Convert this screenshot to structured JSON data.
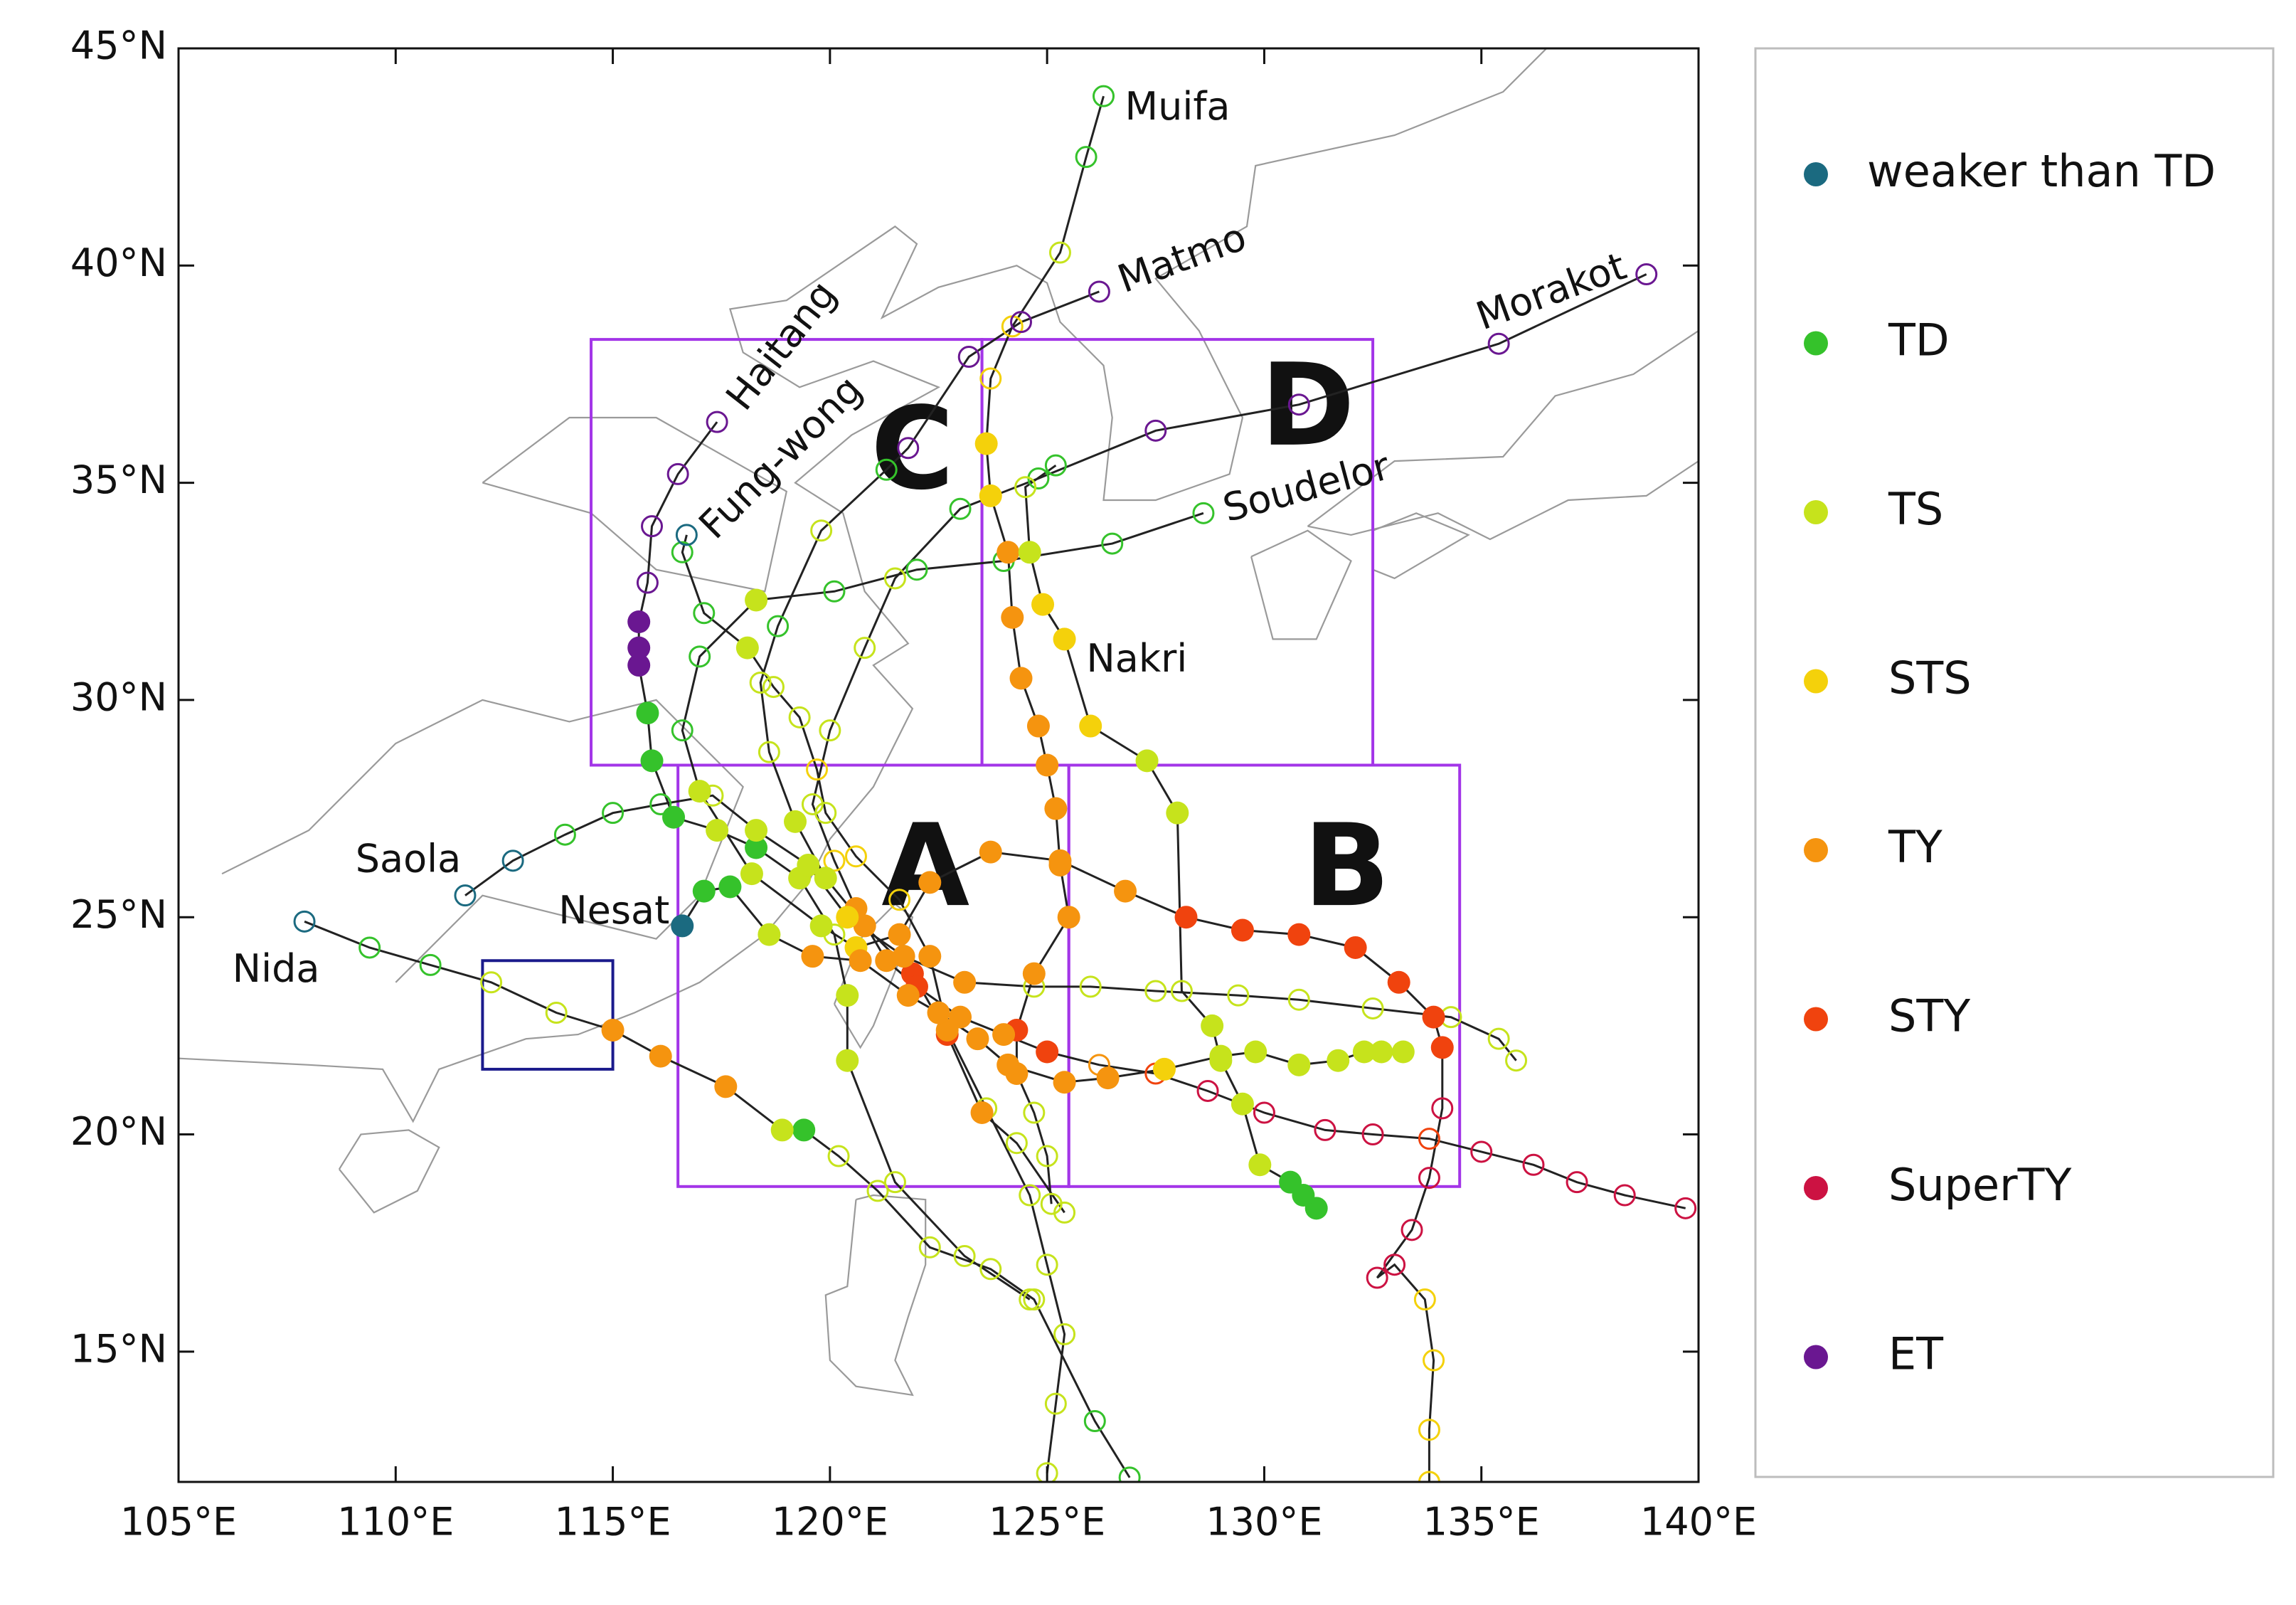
{
  "chart_data": {
    "type": "map",
    "xlim": [
      105,
      140
    ],
    "ylim": [
      12,
      45
    ],
    "xticks": [
      {
        "value": 105,
        "label": "105°E"
      },
      {
        "value": 110,
        "label": "110°E"
      },
      {
        "value": 115,
        "label": "115°E"
      },
      {
        "value": 120,
        "label": "120°E"
      },
      {
        "value": 125,
        "label": "125°E"
      },
      {
        "value": 130,
        "label": "130°E"
      },
      {
        "value": 135,
        "label": "135°E"
      },
      {
        "value": 140,
        "label": "140°E"
      }
    ],
    "yticks": [
      {
        "value": 15,
        "label": "15°N"
      },
      {
        "value": 20,
        "label": "20°N"
      },
      {
        "value": 25,
        "label": "25°N"
      },
      {
        "value": 30,
        "label": "30°N"
      },
      {
        "value": 35,
        "label": "35°N"
      },
      {
        "value": 40,
        "label": "40°N"
      },
      {
        "value": 45,
        "label": "45°N"
      }
    ],
    "legend": [
      {
        "label": "weaker than TD",
        "color": "#1b6a80"
      },
      {
        "label": "TD",
        "color": "#35c22b"
      },
      {
        "label": "TS",
        "color": "#c6e31c"
      },
      {
        "label": "STS",
        "color": "#f4d10b"
      },
      {
        "label": "TY",
        "color": "#f5940f"
      },
      {
        "label": "STY",
        "color": "#f0430e"
      },
      {
        "label": "SuperTY",
        "color": "#cc1242"
      },
      {
        "label": "ET",
        "color": "#6a1791"
      }
    ],
    "regions": [
      {
        "label": "A",
        "lon": [
          116.5,
          125.5
        ],
        "lat": [
          18.8,
          28.5
        ],
        "color": "#a335e8"
      },
      {
        "label": "B",
        "lon": [
          125.5,
          134.5
        ],
        "lat": [
          18.8,
          28.5
        ],
        "color": "#a335e8"
      },
      {
        "label": "C",
        "lon": [
          114.5,
          123.5
        ],
        "lat": [
          28.5,
          38.3
        ],
        "color": "#a335e8"
      },
      {
        "label": "D",
        "lon": [
          123.5,
          132.5
        ],
        "lat": [
          28.5,
          38.3
        ],
        "color": "#a335e8"
      },
      {
        "lon": [
          112,
          115
        ],
        "lat": [
          21.5,
          24
        ],
        "color": "#1a1a8c"
      }
    ],
    "tracks": [
      {
        "name": "Muifa",
        "lon": [
          125.1,
          125.0,
          124.7,
          124.3,
          124.3,
          124.7,
          125.5,
          125.3,
          125.2,
          125.0,
          124.8,
          124.4,
          124.2,
          124.1,
          123.7,
          123.6,
          123.7,
          124.2,
          125.3,
          125.9,
          126.3
        ],
        "lat": [
          18.4,
          19.5,
          20.5,
          21.4,
          22.4,
          23.7,
          25.0,
          26.2,
          27.5,
          28.5,
          29.4,
          30.5,
          31.9,
          33.4,
          34.7,
          35.9,
          37.4,
          38.6,
          40.3,
          42.5,
          43.9
        ],
        "category": [
          "TS",
          "TS",
          "TS",
          "TY",
          "STY",
          "TY",
          "TY",
          "TY",
          "TY",
          "TY",
          "TY",
          "TY",
          "TY",
          "TY",
          "STS",
          "STS",
          "STS",
          "STS",
          "TS",
          "TD",
          "TD"
        ],
        "filled": [
          false,
          false,
          false,
          true,
          true,
          true,
          true,
          true,
          true,
          true,
          true,
          true,
          true,
          true,
          true,
          true,
          false,
          false,
          false,
          false,
          false
        ]
      },
      {
        "name": "Matmo",
        "lon": [
          125.4,
          124.3,
          123.5,
          122.7,
          121.9,
          120.8,
          119.9,
          119.2,
          118.6,
          118.4,
          118.8,
          119.8,
          121.3,
          121.8,
          123.2,
          124.4,
          126.2
        ],
        "lat": [
          18.2,
          19.8,
          20.5,
          22.3,
          23.7,
          24.8,
          25.9,
          27.2,
          28.8,
          30.4,
          31.7,
          33.9,
          35.3,
          35.8,
          37.9,
          38.7,
          39.4
        ],
        "category": [
          "TS",
          "TS",
          "TY",
          "STY",
          "STY",
          "TY",
          "TS",
          "TS",
          "TS",
          "TS",
          "TD",
          "TS",
          "TD",
          "ET",
          "ET",
          "ET",
          "ET"
        ],
        "filled": [
          false,
          false,
          true,
          true,
          true,
          true,
          true,
          true,
          false,
          false,
          false,
          false,
          false,
          false,
          false,
          false,
          false
        ]
      },
      {
        "name": "Morakot",
        "lon": [
          139.7,
          138.3,
          137.2,
          136.2,
          135.0,
          133.8,
          132.5,
          131.4,
          130.0,
          128.7,
          127.5,
          126.2,
          125.0,
          124.0,
          123.0,
          122.0,
          121.3,
          120.6,
          120.1,
          119.6,
          120.0,
          120.8,
          121.5,
          123.0,
          124.8,
          127.5,
          130.8,
          135.4,
          138.8
        ],
        "lat": [
          18.3,
          18.6,
          18.9,
          19.3,
          19.6,
          19.9,
          20.0,
          20.1,
          20.5,
          21.0,
          21.4,
          21.6,
          21.9,
          22.3,
          22.7,
          23.4,
          24.0,
          25.2,
          26.3,
          27.6,
          29.3,
          31.2,
          32.8,
          34.4,
          35.1,
          36.2,
          36.8,
          38.2,
          39.8
        ],
        "category": [
          "SuperTY",
          "SuperTY",
          "SuperTY",
          "SuperTY",
          "SuperTY",
          "STY",
          "SuperTY",
          "SuperTY",
          "SuperTY",
          "SuperTY",
          "STY",
          "TY",
          "STY",
          "TY",
          "TY",
          "STY",
          "TY",
          "TY",
          "STS",
          "TS",
          "TS",
          "TS",
          "TS",
          "TD",
          "TD",
          "ET",
          "ET",
          "ET",
          "ET"
        ],
        "filled": [
          false,
          false,
          false,
          false,
          false,
          false,
          false,
          false,
          false,
          false,
          false,
          false,
          true,
          true,
          true,
          true,
          true,
          true,
          false,
          false,
          false,
          false,
          false,
          false,
          false,
          false,
          false,
          false,
          false
        ]
      },
      {
        "name": "Soudelor",
        "lon": [
          133.8,
          133.8,
          133.9,
          133.7,
          133.0,
          132.6,
          133.4,
          133.8,
          134.1,
          134.1,
          133.9,
          133.1,
          132.1,
          130.8,
          129.5,
          128.2,
          126.8,
          125.3,
          123.7,
          122.3,
          121.6,
          120.6,
          119.8,
          118.2,
          117.0,
          116.6,
          117.0,
          118.3,
          120.1,
          122.0,
          124.0,
          126.5,
          128.6
        ],
        "lat": [
          12.0,
          13.2,
          14.8,
          16.2,
          17.0,
          16.7,
          17.8,
          19.0,
          20.6,
          22.0,
          22.7,
          23.5,
          24.3,
          24.6,
          24.7,
          25.0,
          25.6,
          26.3,
          26.5,
          25.8,
          24.6,
          24.3,
          24.8,
          26.0,
          27.9,
          29.3,
          31.0,
          32.3,
          32.5,
          33.0,
          33.2,
          33.6,
          34.3
        ],
        "category": [
          "STS",
          "STS",
          "STS",
          "STS",
          "SuperTY",
          "SuperTY",
          "SuperTY",
          "SuperTY",
          "SuperTY",
          "STY",
          "STY",
          "STY",
          "STY",
          "STY",
          "STY",
          "STY",
          "TY",
          "TY",
          "TY",
          "TY",
          "TY",
          "STS",
          "TS",
          "TS",
          "TS",
          "TD",
          "TD",
          "TS",
          "TD",
          "TD",
          "TD",
          "TD",
          "TD"
        ],
        "filled": [
          false,
          false,
          false,
          false,
          false,
          false,
          false,
          false,
          false,
          true,
          true,
          true,
          true,
          true,
          true,
          true,
          true,
          true,
          true,
          true,
          true,
          true,
          true,
          true,
          true,
          false,
          false,
          true,
          false,
          false,
          false,
          false,
          false
        ]
      },
      {
        "name": "Haitang",
        "lon": [
          124.6,
          123.1,
          121.5,
          120.4,
          120.4,
          120.1,
          119.3,
          118.3,
          117.4,
          116.4,
          115.9,
          115.8,
          115.6,
          115.6,
          115.6,
          115.8,
          115.9,
          116.5,
          117.4
        ],
        "lat": [
          16.2,
          17.2,
          18.9,
          21.7,
          23.2,
          24.6,
          25.9,
          26.6,
          27.0,
          27.3,
          28.6,
          29.7,
          30.8,
          31.2,
          31.8,
          32.7,
          34.0,
          35.2,
          36.4
        ],
        "category": [
          "TS",
          "TS",
          "TS",
          "TS",
          "TS",
          "TS",
          "TS",
          "TD",
          "TS",
          "TD",
          "TD",
          "TD",
          "ET",
          "ET",
          "ET",
          "ET",
          "ET",
          "ET",
          "ET"
        ],
        "filled": [
          false,
          false,
          false,
          true,
          true,
          false,
          true,
          true,
          true,
          true,
          true,
          true,
          true,
          true,
          true,
          false,
          false,
          false,
          false
        ]
      },
      {
        "name": "Fung-wong",
        "lon": [
          125.0,
          125.2,
          125.4,
          125.0,
          124.6,
          123.6,
          122.7,
          122.3,
          121.6,
          120.6,
          119.9,
          119.7,
          119.3,
          118.7,
          118.1,
          117.1,
          116.6,
          116.7
        ],
        "lat": [
          12.2,
          13.8,
          15.4,
          17.0,
          18.6,
          20.6,
          22.4,
          24.1,
          25.4,
          26.4,
          27.4,
          28.4,
          29.6,
          30.3,
          31.2,
          32.0,
          33.4,
          33.8
        ],
        "category": [
          "TS",
          "TS",
          "TS",
          "TS",
          "TS",
          "TS",
          "TY",
          "TY",
          "STS",
          "STS",
          "TS",
          "STS",
          "TS",
          "TS",
          "TS",
          "TD",
          "TD",
          "weaker than TD"
        ],
        "filled": [
          false,
          false,
          false,
          false,
          false,
          false,
          true,
          true,
          false,
          false,
          false,
          false,
          false,
          false,
          true,
          false,
          false,
          false
        ]
      },
      {
        "name": "Nakri",
        "lon": [
          131.2,
          130.9,
          130.6,
          129.9,
          129.5,
          129.0,
          128.8,
          128.1,
          128.0,
          127.3,
          126.0,
          125.4,
          124.9,
          124.6,
          124.5,
          125.2
        ],
        "lat": [
          18.3,
          18.6,
          18.9,
          19.3,
          20.7,
          21.7,
          22.5,
          23.3,
          27.4,
          28.6,
          29.4,
          31.4,
          32.2,
          33.4,
          34.9,
          35.4
        ],
        "category": [
          "TD",
          "TD",
          "TD",
          "TS",
          "TS",
          "TS",
          "TS",
          "TS",
          "TS",
          "TS",
          "STS",
          "STS",
          "STS",
          "TS",
          "TS",
          "TD"
        ],
        "filled": [
          true,
          true,
          true,
          true,
          true,
          true,
          true,
          false,
          true,
          true,
          true,
          true,
          true,
          true,
          false,
          false
        ]
      },
      {
        "name": "Saola",
        "lon": [
          135.8,
          135.4,
          134.3,
          132.5,
          130.8,
          129.4,
          127.5,
          126.0,
          124.7,
          123.1,
          121.7,
          120.4,
          119.5,
          118.3,
          117.3,
          116.1,
          115.0,
          113.9,
          112.7,
          111.6
        ],
        "lat": [
          21.7,
          22.2,
          22.7,
          22.9,
          23.1,
          23.2,
          23.3,
          23.4,
          23.4,
          23.5,
          24.1,
          25.0,
          26.2,
          27.0,
          27.8,
          27.6,
          27.4,
          26.9,
          26.3,
          25.5
        ],
        "category": [
          "TS",
          "TS",
          "TS",
          "TS",
          "TS",
          "TS",
          "TS",
          "TS",
          "TS",
          "TY",
          "TY",
          "STS",
          "TS",
          "TS",
          "TS",
          "TD",
          "TD",
          "TD",
          "weaker than TD",
          "weaker than TD"
        ],
        "filled": [
          false,
          false,
          false,
          false,
          false,
          false,
          false,
          false,
          false,
          true,
          true,
          true,
          true,
          true,
          false,
          false,
          false,
          false,
          false,
          false
        ]
      },
      {
        "name": "Nesat",
        "lon": [
          133.2,
          132.7,
          132.3,
          131.7,
          130.8,
          129.8,
          129.0,
          127.7,
          126.4,
          125.4,
          124.1,
          123.4,
          122.5,
          121.8,
          120.7,
          119.6,
          118.6,
          117.7,
          117.1,
          116.6
        ],
        "lat": [
          21.9,
          21.9,
          21.9,
          21.7,
          21.6,
          21.9,
          21.8,
          21.5,
          21.3,
          21.2,
          21.6,
          22.2,
          22.8,
          23.2,
          24.0,
          24.1,
          24.6,
          25.7,
          25.6,
          24.8
        ],
        "category": [
          "TS",
          "TS",
          "TS",
          "TS",
          "TS",
          "TS",
          "TS",
          "STS",
          "TY",
          "TY",
          "TY",
          "TY",
          "TY",
          "TY",
          "TY",
          "TY",
          "TS",
          "TD",
          "TD",
          "weaker than TD"
        ],
        "filled": [
          true,
          true,
          true,
          true,
          true,
          true,
          true,
          true,
          true,
          true,
          true,
          true,
          true,
          true,
          true,
          true,
          true,
          true,
          true,
          true
        ]
      },
      {
        "name": "Nida",
        "lon": [
          126.9,
          126.1,
          124.7,
          123.7,
          122.3,
          121.1,
          120.2,
          119.4,
          118.9,
          117.6,
          116.1,
          115.0,
          113.7,
          112.2,
          110.8,
          109.4,
          107.9
        ],
        "lat": [
          12.1,
          13.4,
          16.2,
          16.9,
          17.4,
          18.7,
          19.5,
          20.1,
          20.1,
          21.1,
          21.8,
          22.4,
          22.8,
          23.5,
          23.9,
          24.3,
          24.9
        ],
        "category": [
          "TD",
          "TD",
          "TS",
          "TS",
          "TS",
          "TS",
          "TS",
          "TD",
          "TS",
          "TY",
          "TY",
          "TY",
          "TS",
          "TS",
          "TD",
          "TD",
          "weaker than TD"
        ],
        "filled": [
          false,
          false,
          false,
          false,
          false,
          false,
          false,
          true,
          true,
          true,
          true,
          true,
          false,
          false,
          false,
          false,
          false
        ]
      }
    ]
  }
}
